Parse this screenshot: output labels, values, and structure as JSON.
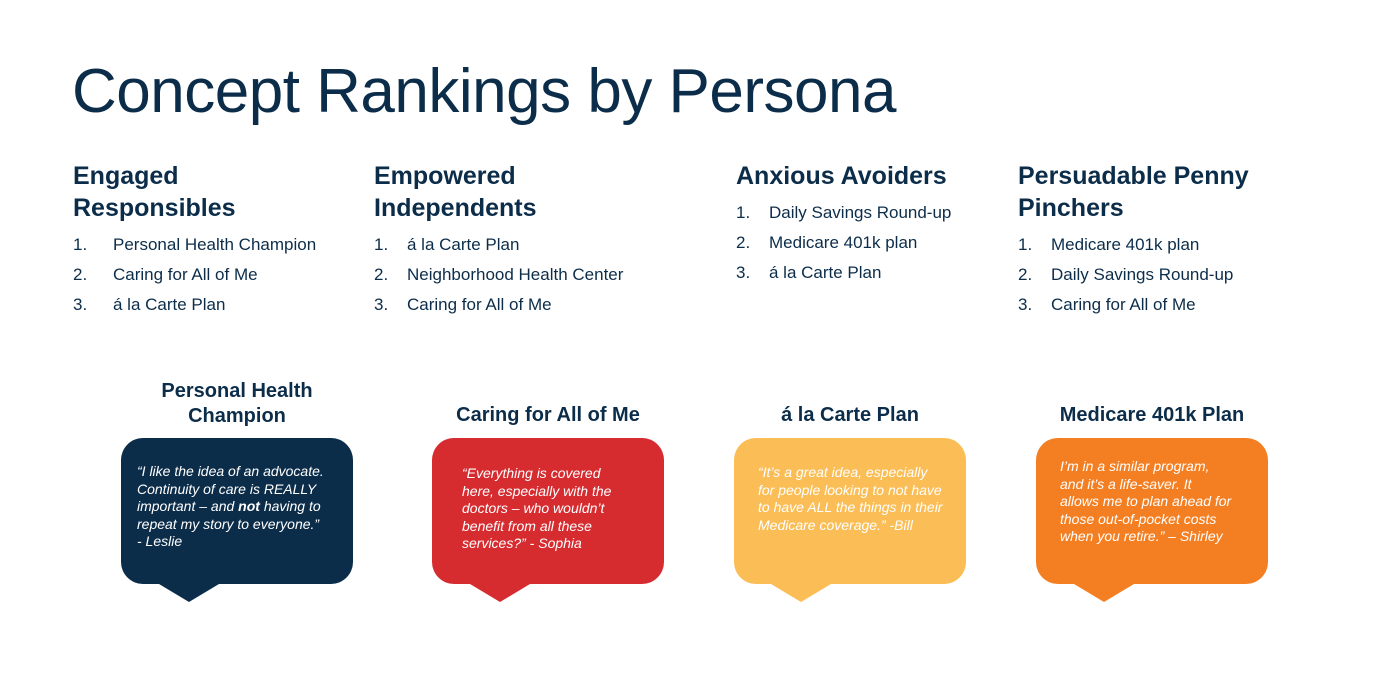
{
  "title": "Concept Rankings by Persona",
  "personas": [
    {
      "name_line1": "Engaged",
      "name_line2": "Responsibles",
      "items": [
        {
          "num": "1.",
          "label": "Personal Health Champion"
        },
        {
          "num": "2.",
          "label": "Caring for All of Me"
        },
        {
          "num": "3.",
          "label": "á la Carte Plan"
        }
      ]
    },
    {
      "name_line1": "Empowered",
      "name_line2": "Independents",
      "items": [
        {
          "num": "1.",
          "label": "á la Carte Plan"
        },
        {
          "num": "2.",
          "label": "Neighborhood Health Center"
        },
        {
          "num": "3.",
          "label": "Caring for All of Me"
        }
      ]
    },
    {
      "name_line1": "Anxious Avoiders",
      "name_line2": "",
      "items": [
        {
          "num": "1.",
          "label": "Daily Savings Round-up"
        },
        {
          "num": "2.",
          "label": "Medicare 401k plan"
        },
        {
          "num": "3.",
          "label": "á la Carte Plan"
        }
      ]
    },
    {
      "name_line1": "Persuadable Penny",
      "name_line2": "Pinchers",
      "items": [
        {
          "num": "1.",
          "label": "Medicare 401k plan"
        },
        {
          "num": "2.",
          "label": "Daily Savings Round-up"
        },
        {
          "num": "3.",
          "label": "Caring for All of Me"
        }
      ]
    }
  ],
  "concepts": [
    {
      "title_line1": "Personal Health",
      "title_line2": "Champion",
      "color": "#0c2d4a",
      "quote_before": "“I like the idea of an advocate. Continuity of care is REALLY important – and ",
      "quote_bold": "not",
      "quote_after": " having to repeat my story to everyone.”",
      "attribution": "- Leslie"
    },
    {
      "title_line1": "Caring for All of Me",
      "title_line2": "",
      "color": "#d62b2f",
      "quote_before": "“Everything is covered here, especially with the doctors – who wouldn’t benefit from all these services?” - Sophia",
      "quote_bold": "",
      "quote_after": "",
      "attribution": ""
    },
    {
      "title_line1": "á la Carte Plan",
      "title_line2": "",
      "color": "#fbbd55",
      "quote_before": "“It’s a great idea, especially for people looking to not have to have ALL the things in their Medicare coverage.” -Bill",
      "quote_bold": "",
      "quote_after": "",
      "attribution": ""
    },
    {
      "title_line1": "Medicare 401k Plan",
      "title_line2": "",
      "color": "#f47f22",
      "quote_before": "I’m  in a similar program, and it’s a life-saver. It allows me to plan ahead for those out-of-pocket costs when you  retire.” – Shirley",
      "quote_bold": "",
      "quote_after": "",
      "attribution": ""
    }
  ]
}
